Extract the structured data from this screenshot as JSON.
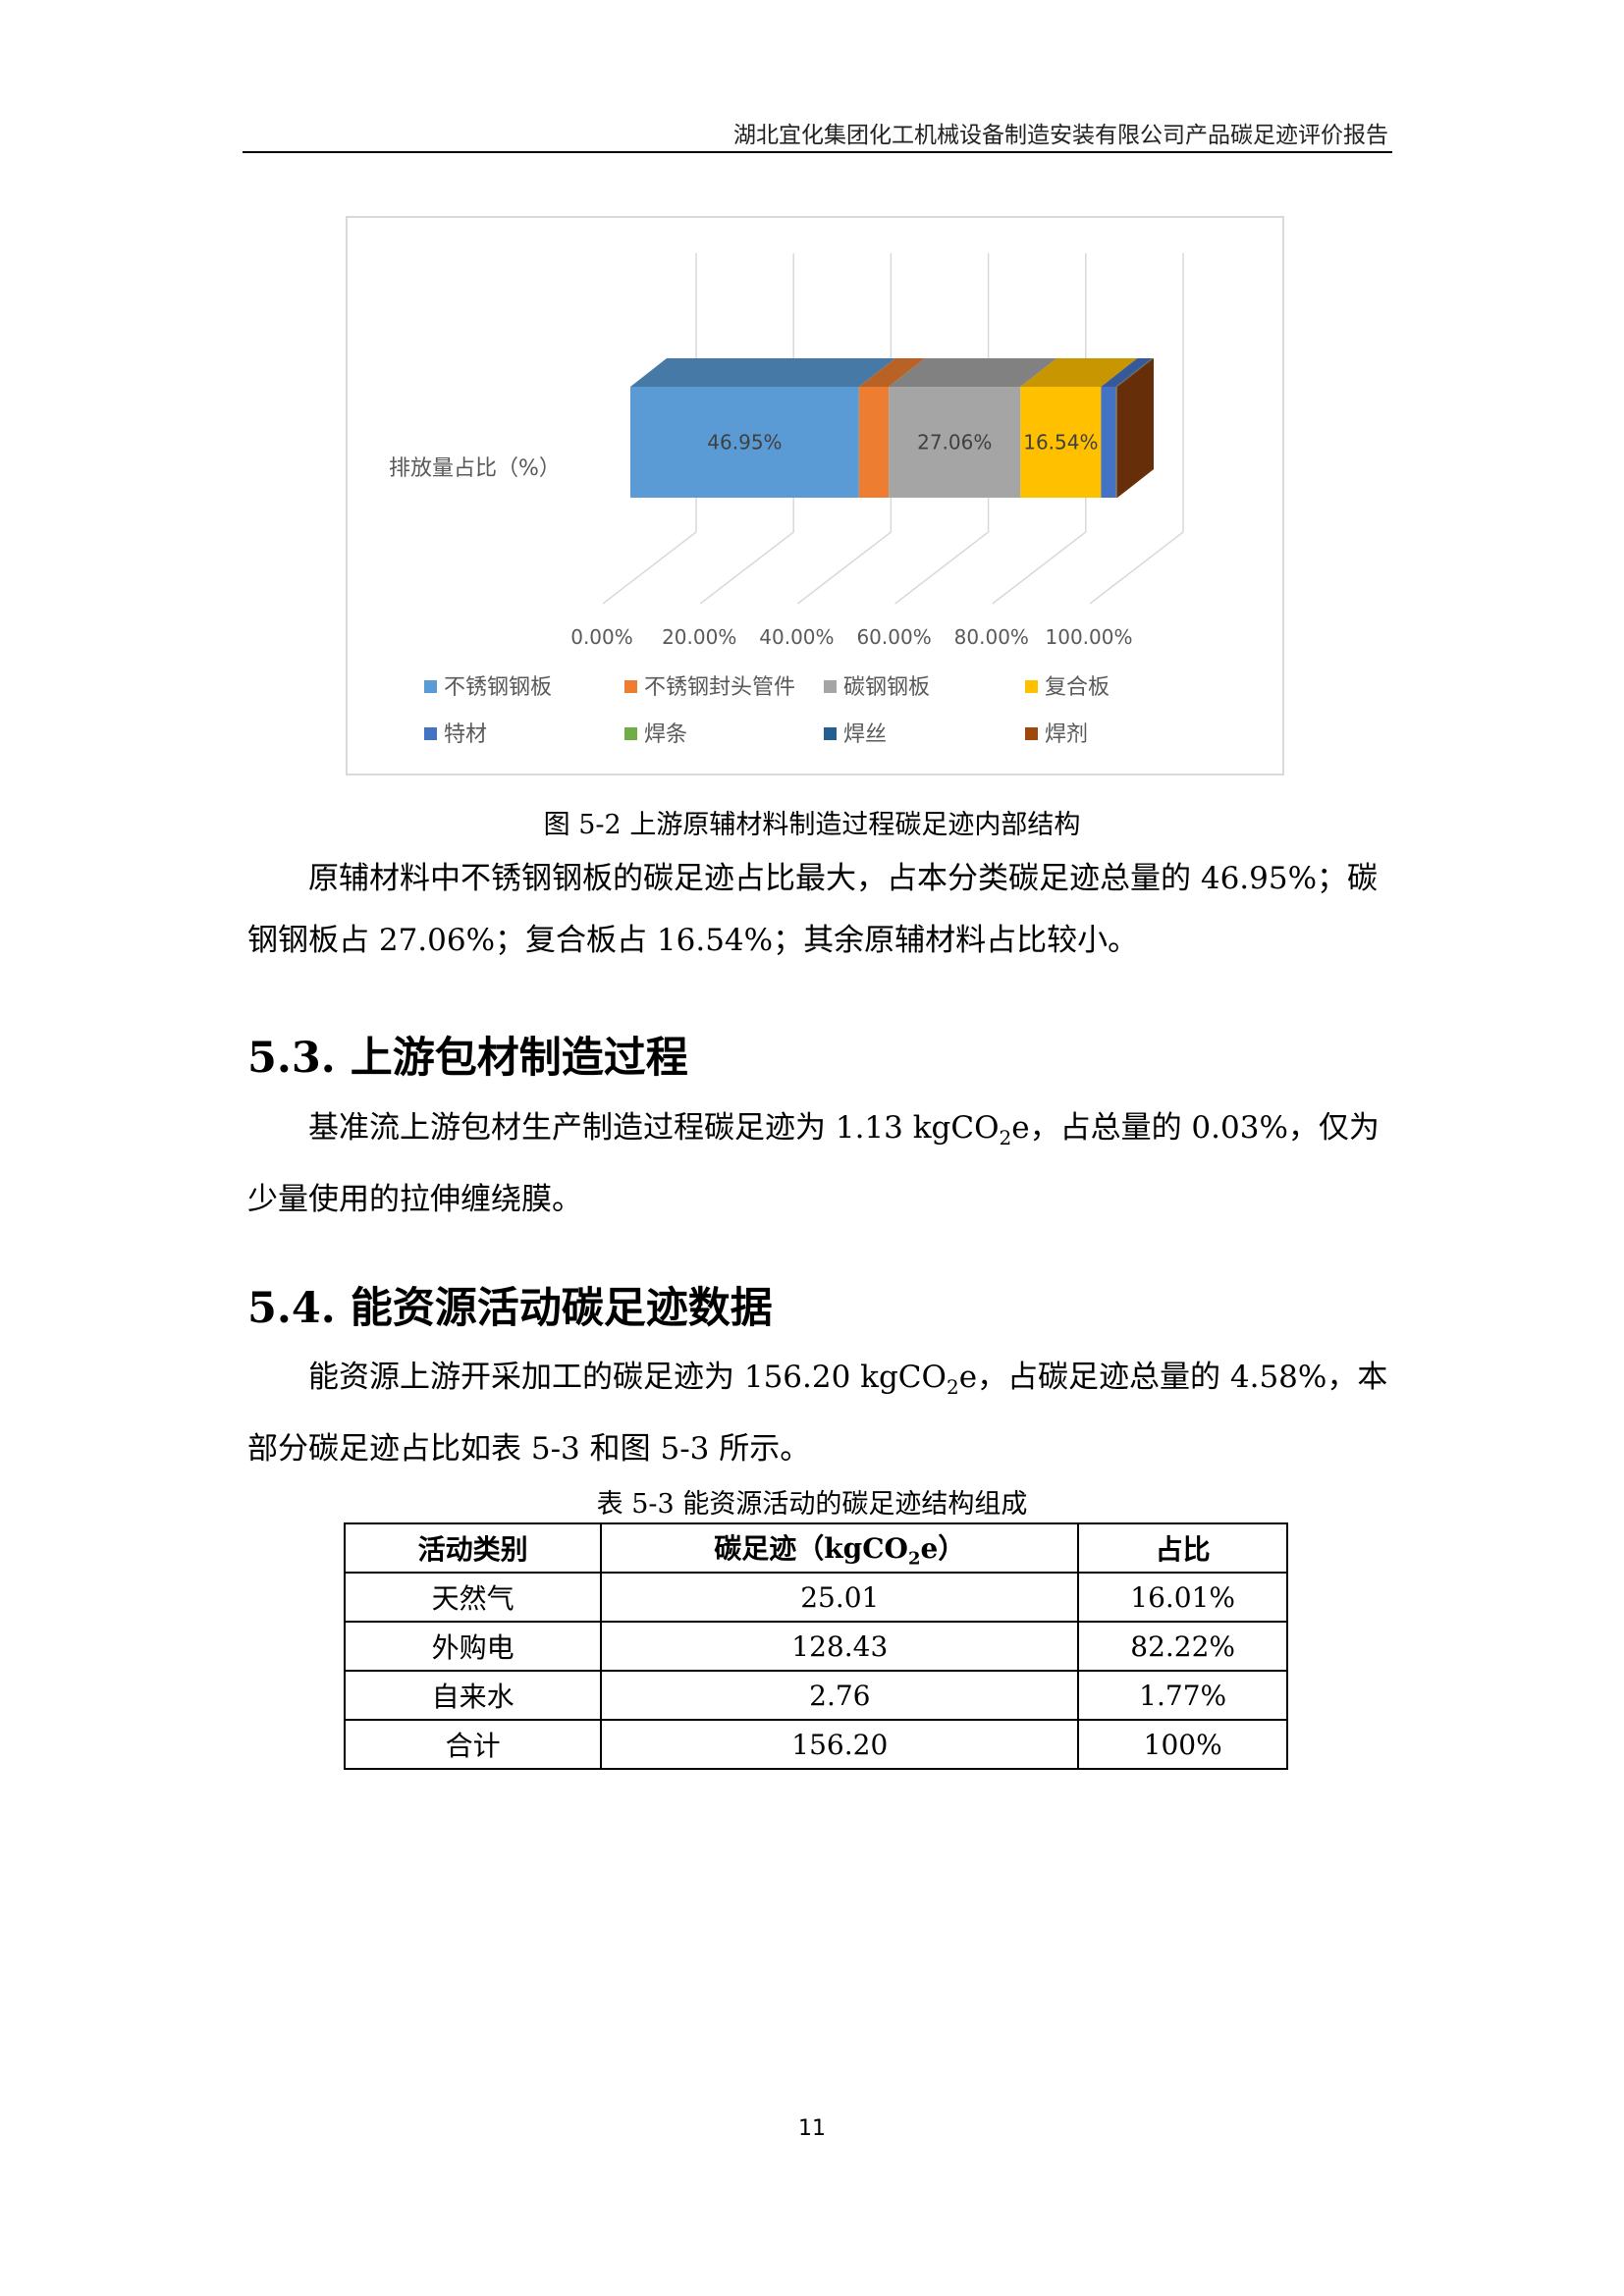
{
  "header": {
    "title": "湖北宜化集团化工机械设备制造安装有限公司产品碳足迹评价报告"
  },
  "chart_data": {
    "type": "bar",
    "orientation": "horizontal",
    "stacked": "percent",
    "style": "3d",
    "categories": [
      "排放量占比（%）"
    ],
    "series": [
      {
        "name": "不锈钢钢板",
        "values": [
          46.95
        ],
        "color": "#5b9bd5",
        "label": "46.95%"
      },
      {
        "name": "不锈钢封头管件",
        "values": [
          6.1
        ],
        "color": "#ed7d31",
        "label": ""
      },
      {
        "name": "碳钢钢板",
        "values": [
          27.06
        ],
        "color": "#a5a5a5",
        "label": "27.06%"
      },
      {
        "name": "复合板",
        "values": [
          16.54
        ],
        "color": "#ffc000",
        "label": "16.54%"
      },
      {
        "name": "特材",
        "values": [
          3.0
        ],
        "color": "#4472c4",
        "label": ""
      },
      {
        "name": "焊条",
        "values": [
          0.05
        ],
        "color": "#70ad47",
        "label": ""
      },
      {
        "name": "焊丝",
        "values": [
          0.15
        ],
        "color": "#255e91",
        "label": ""
      },
      {
        "name": "焊剂",
        "values": [
          0.15
        ],
        "color": "#9e480e",
        "label": ""
      }
    ],
    "x_ticks": [
      "0.00%",
      "20.00%",
      "40.00%",
      "60.00%",
      "80.00%",
      "100.00%"
    ],
    "xlim": [
      0,
      100
    ],
    "grid": true,
    "legend_position": "bottom"
  },
  "figure_caption": "图 5-2  上游原辅材料制造过程碳足迹内部结构",
  "para1": "原辅材料中不锈钢钢板的碳足迹占比最大，占本分类碳足迹总量的 46.95%；碳钢钢板占 27.06%；复合板占 16.54%；其余原辅材料占比较小。",
  "section53": {
    "heading": "5.3. 上游包材制造过程",
    "text_a": "基准流上游包材生产制造过程碳足迹为 1.13  kgCO",
    "sub": "2",
    "text_b": "e，占总量的 0.03%，仅为少量使用的拉伸缠绕膜。"
  },
  "section54": {
    "heading": "5.4. 能资源活动碳足迹数据",
    "text_a": "能资源上游开采加工的碳足迹为 156.20  kgCO",
    "sub": "2",
    "text_b": "e，占碳足迹总量的 4.58%，本部分碳足迹占比如表 5-3 和图 5-3 所示。"
  },
  "table": {
    "caption": "表 5-3  能资源活动的碳足迹结构组成",
    "headers": [
      "活动类别",
      "碳足迹（kgCO",
      "2",
      "e）",
      "占比"
    ],
    "rows": [
      [
        "天然气",
        "25.01",
        "16.01%"
      ],
      [
        "外购电",
        "128.43",
        "82.22%"
      ],
      [
        "自来水",
        "2.76",
        "1.77%"
      ],
      [
        "合计",
        "156.20",
        "100%"
      ]
    ]
  },
  "page_number": "11"
}
